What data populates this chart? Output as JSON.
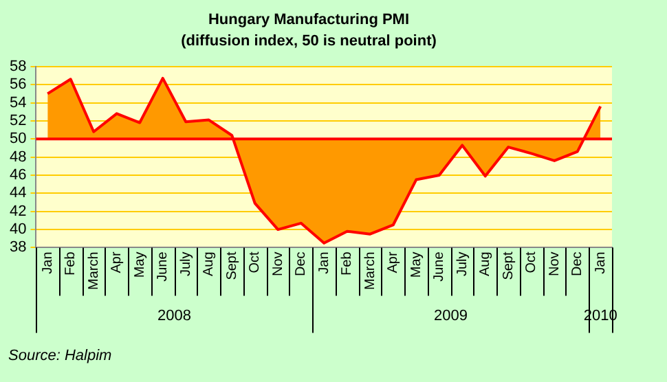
{
  "chart_data": {
    "type": "area",
    "title": "Hungary Manufacturing PMI",
    "subtitle": "(diffusion index, 50 is neutral point)",
    "categories": [
      "Jan",
      "Feb",
      "March",
      "Apr",
      "May",
      "June",
      "July",
      "Aug",
      "Sept",
      "Oct",
      "Nov",
      "Dec",
      "Jan",
      "Feb",
      "March",
      "Apr",
      "May",
      "June",
      "July",
      "Aug",
      "Sept",
      "Oct",
      "Nov",
      "Dec",
      "Jan"
    ],
    "series": [
      {
        "color": "#ff9900",
        "values": [
          55.0,
          56.6,
          50.8,
          52.8,
          51.8,
          56.7,
          51.9,
          52.1,
          50.4,
          42.9,
          40.0,
          40.7,
          38.5,
          39.8,
          39.5,
          40.5,
          45.5,
          46.0,
          49.3,
          45.9,
          49.1,
          48.4,
          47.6,
          48.6,
          53.6
        ]
      }
    ],
    "ylim": [
      38,
      58
    ],
    "yticks": [
      38,
      40,
      42,
      44,
      46,
      48,
      50,
      52,
      54,
      56,
      58
    ],
    "grid": "y",
    "legend": false,
    "ref_lines": [
      {
        "axis": "y",
        "value": 50,
        "color": "#ff0000"
      }
    ],
    "annotations": [
      "2008",
      "2009",
      "2010",
      "Source: Halpim"
    ]
  }
}
